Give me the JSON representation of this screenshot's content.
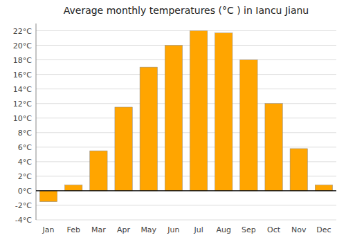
{
  "chart_data": {
    "type": "bar",
    "title": "Average monthly temperatures (°C ) in Iancu Jianu",
    "categories": [
      "Jan",
      "Feb",
      "Mar",
      "Apr",
      "May",
      "Jun",
      "Jul",
      "Aug",
      "Sep",
      "Oct",
      "Nov",
      "Dec"
    ],
    "values": [
      -1.5,
      0.8,
      5.5,
      11.5,
      17.0,
      20.0,
      22.0,
      21.7,
      18.0,
      12.0,
      5.8,
      0.8
    ],
    "color": "#FFA500",
    "ylim": [
      -4,
      23
    ],
    "yticks": [
      {
        "value": -4,
        "label": "-4°C"
      },
      {
        "value": -2,
        "label": "-2°C"
      },
      {
        "value": 0,
        "label": "0°C"
      },
      {
        "value": 2,
        "label": "2°C"
      },
      {
        "value": 4,
        "label": "4°C"
      },
      {
        "value": 6,
        "label": "6°C"
      },
      {
        "value": 8,
        "label": "8°C"
      },
      {
        "value": 10,
        "label": "10°C"
      },
      {
        "value": 12,
        "label": "12°C"
      },
      {
        "value": 14,
        "label": "14°C"
      },
      {
        "value": 16,
        "label": "16°C"
      },
      {
        "value": 18,
        "label": "18°C"
      },
      {
        "value": 20,
        "label": "20°C"
      },
      {
        "value": 22,
        "label": "22°C"
      }
    ],
    "grid": true
  }
}
